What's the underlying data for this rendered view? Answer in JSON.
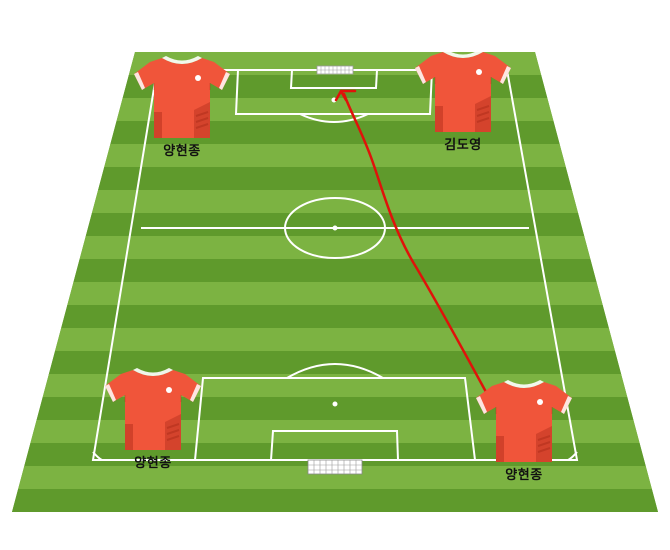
{
  "colors": {
    "grass_light": "#7cb342",
    "grass_dark": "#5f9a2c",
    "lines": "#ffffff",
    "jersey": "#f0553a",
    "jersey_dark": "#b8321e",
    "arrow": "#e0120a"
  },
  "players": [
    {
      "id": "top-left",
      "name": "양현종",
      "icon": "red-jersey-icon"
    },
    {
      "id": "top-right",
      "name": "김도영",
      "icon": "red-jersey-icon"
    },
    {
      "id": "bottom-left",
      "name": "양현종",
      "icon": "red-jersey-icon"
    },
    {
      "id": "bottom-right",
      "name": "양현종",
      "icon": "red-jersey-icon"
    }
  ],
  "pass": {
    "from": "bottom-right",
    "to": "top-goal",
    "icon": "pass-arrow-icon"
  }
}
